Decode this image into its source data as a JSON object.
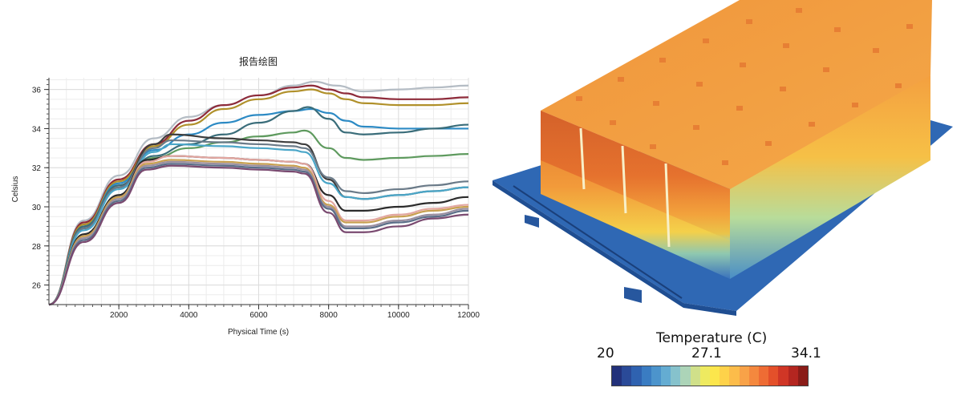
{
  "chart_data": {
    "type": "line",
    "title": "报告绘图",
    "xlabel": "Physical Time (s)",
    "ylabel": "Celsius",
    "xlim": [
      0,
      12000
    ],
    "ylim": [
      25,
      36.6
    ],
    "xticks": [
      "2000",
      "4000",
      "6000",
      "8000",
      "10000",
      "12000"
    ],
    "yticks": [
      "26",
      "28",
      "30",
      "32",
      "34",
      "36"
    ],
    "grid": true,
    "legend": "none",
    "series": [
      {
        "color": "#b4bcc4",
        "x": [
          0,
          1000,
          2000,
          3000,
          4000,
          5000,
          6000,
          7000,
          7600,
          8200,
          9000,
          10000,
          11000,
          12000
        ],
        "y": [
          25,
          29.3,
          31.6,
          33.5,
          34.6,
          35.2,
          35.7,
          36.2,
          36.4,
          36.2,
          35.9,
          36.0,
          36.1,
          36.2
        ]
      },
      {
        "color": "#8e2b3a",
        "x": [
          0,
          1000,
          2000,
          3000,
          4000,
          5000,
          6000,
          7000,
          7500,
          8000,
          8500,
          9000,
          10000,
          11000,
          12000
        ],
        "y": [
          25,
          29.2,
          31.4,
          33.2,
          34.4,
          35.2,
          35.7,
          36.1,
          36.2,
          36.0,
          35.8,
          35.6,
          35.5,
          35.5,
          35.6
        ]
      },
      {
        "color": "#b0902a",
        "x": [
          0,
          1000,
          2000,
          3000,
          4000,
          5000,
          6000,
          7000,
          7500,
          8000,
          8500,
          9000,
          10000,
          11000,
          12000
        ],
        "y": [
          25,
          29.1,
          31.3,
          33.1,
          34.2,
          35.0,
          35.5,
          35.9,
          36.0,
          35.8,
          35.5,
          35.3,
          35.2,
          35.2,
          35.3
        ]
      },
      {
        "color": "#2c8ac4",
        "x": [
          0,
          1000,
          2000,
          3000,
          4000,
          5000,
          6000,
          7000,
          7500,
          8000,
          8500,
          9000,
          10000,
          11000,
          12000
        ],
        "y": [
          25,
          29.0,
          31.2,
          32.9,
          33.7,
          34.3,
          34.7,
          34.9,
          35.0,
          34.8,
          34.4,
          34.1,
          34.0,
          34.0,
          34.0
        ]
      },
      {
        "color": "#3a6d7a",
        "x": [
          0,
          1000,
          2000,
          3000,
          4000,
          5000,
          6000,
          7000,
          7400,
          8000,
          8500,
          9000,
          10000,
          11000,
          12000
        ],
        "y": [
          25,
          29.0,
          31.1,
          32.6,
          33.2,
          33.7,
          34.3,
          34.9,
          35.1,
          34.5,
          33.8,
          33.7,
          33.8,
          34.0,
          34.2
        ]
      },
      {
        "color": "#5e9a5e",
        "x": [
          0,
          1000,
          2000,
          3000,
          4000,
          5000,
          6000,
          7000,
          7300,
          8000,
          8500,
          9000,
          10000,
          11000,
          12000
        ],
        "y": [
          25,
          28.9,
          31.0,
          32.5,
          33.0,
          33.3,
          33.6,
          33.8,
          33.9,
          33.0,
          32.5,
          32.4,
          32.5,
          32.6,
          32.7
        ]
      },
      {
        "color": "#3e3e3e",
        "x": [
          0,
          1000,
          2000,
          3000,
          3500,
          5000,
          6000,
          7000,
          7300,
          8000,
          8500,
          9000,
          10000,
          11000,
          12000
        ],
        "y": [
          25,
          28.9,
          31.0,
          33.2,
          33.7,
          33.5,
          33.4,
          33.3,
          33.2,
          31.4,
          30.5,
          30.4,
          30.6,
          30.8,
          31.0
        ]
      },
      {
        "color": "#6a7a88",
        "x": [
          0,
          1000,
          2000,
          3000,
          3500,
          5000,
          6000,
          7000,
          7300,
          8000,
          8500,
          9000,
          10000,
          11000,
          12000
        ],
        "y": [
          25,
          28.9,
          31.0,
          33.0,
          33.4,
          33.3,
          33.2,
          33.1,
          33.0,
          31.5,
          30.8,
          30.7,
          30.9,
          31.1,
          31.3
        ]
      },
      {
        "color": "#4aa6c8",
        "x": [
          0,
          1000,
          2000,
          3000,
          3500,
          5000,
          6000,
          7000,
          7300,
          8000,
          8500,
          9000,
          10000,
          11000,
          12000
        ],
        "y": [
          25,
          28.8,
          30.9,
          32.8,
          33.2,
          33.1,
          33.0,
          32.9,
          32.8,
          31.2,
          30.5,
          30.4,
          30.6,
          30.8,
          31.0
        ]
      },
      {
        "color": "#2b2b2b",
        "x": [
          0,
          1000,
          2000,
          2800,
          3500,
          5000,
          6000,
          7000,
          7300,
          8000,
          8500,
          9000,
          10000,
          11000,
          12000
        ],
        "y": [
          25,
          28.6,
          30.6,
          32.4,
          32.6,
          32.5,
          32.4,
          32.3,
          32.2,
          30.6,
          29.8,
          29.8,
          30.0,
          30.2,
          30.5
        ]
      },
      {
        "color": "#e2a6a0",
        "x": [
          0,
          1000,
          2000,
          2800,
          3500,
          5000,
          6000,
          7000,
          7300,
          8000,
          8500,
          9000,
          10000,
          11000,
          12000
        ],
        "y": [
          25,
          28.5,
          30.5,
          32.3,
          32.6,
          32.5,
          32.4,
          32.3,
          32.2,
          30.3,
          29.3,
          29.3,
          29.6,
          29.9,
          30.1
        ]
      },
      {
        "color": "#c8a050",
        "x": [
          0,
          1000,
          2000,
          2800,
          3500,
          5000,
          6000,
          7000,
          7300,
          8000,
          8500,
          9000,
          10000,
          11000,
          12000
        ],
        "y": [
          25,
          28.5,
          30.5,
          32.2,
          32.4,
          32.3,
          32.2,
          32.1,
          32.0,
          30.1,
          29.2,
          29.2,
          29.5,
          29.8,
          30.0
        ]
      },
      {
        "color": "#9a8fa0",
        "x": [
          0,
          1000,
          2000,
          2800,
          3500,
          5000,
          6000,
          7000,
          7300,
          8000,
          8500,
          9000,
          10000,
          11000,
          12000
        ],
        "y": [
          25,
          28.4,
          30.4,
          32.1,
          32.3,
          32.2,
          32.1,
          32.0,
          31.9,
          30.0,
          29.0,
          29.0,
          29.3,
          29.6,
          29.9
        ]
      },
      {
        "color": "#5a6e88",
        "x": [
          0,
          1000,
          2000,
          2800,
          3500,
          5000,
          6000,
          7000,
          7300,
          8000,
          8500,
          9000,
          10000,
          11000,
          12000
        ],
        "y": [
          25,
          28.3,
          30.3,
          32.0,
          32.2,
          32.1,
          32.0,
          31.9,
          31.8,
          29.9,
          28.9,
          28.9,
          29.2,
          29.5,
          29.8
        ]
      },
      {
        "color": "#7a4a70",
        "x": [
          0,
          1000,
          2000,
          2800,
          3500,
          5000,
          6000,
          7000,
          7300,
          8000,
          8500,
          9000,
          10000,
          11000,
          12000
        ],
        "y": [
          25,
          28.2,
          30.2,
          31.9,
          32.1,
          32.0,
          31.9,
          31.8,
          31.7,
          29.7,
          28.7,
          28.7,
          29.0,
          29.4,
          29.6
        ]
      }
    ]
  },
  "render": {
    "colorbar_title": "Temperature (C)",
    "colorbar_min": "20",
    "colorbar_mid": "27.1",
    "colorbar_max": "34.1",
    "colormap": [
      "#22317a",
      "#2a4a98",
      "#2f62b0",
      "#3a7cc2",
      "#4c94cc",
      "#64acd2",
      "#86c2cc",
      "#acd4b8",
      "#d0e08a",
      "#eeea60",
      "#fce64c",
      "#fed24a",
      "#fcbc4a",
      "#f8a248",
      "#f4883e",
      "#ee6c34",
      "#e4502a",
      "#d03626",
      "#b42620",
      "#8a1c18"
    ]
  }
}
